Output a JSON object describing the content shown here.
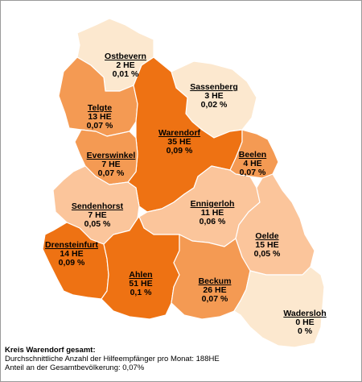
{
  "colors": {
    "very_light": "#fce8cf",
    "light": "#fbc59b",
    "medium": "#f49a53",
    "dark": "#ee7213"
  },
  "regions": [
    {
      "id": "ostbevern",
      "name": "Ostbevern",
      "he": "2 HE",
      "pct": "0,01 %",
      "shade": "very_light"
    },
    {
      "id": "sassenberg",
      "name": "Sassenberg",
      "he": "3 HE",
      "pct": "0,02 %",
      "shade": "very_light"
    },
    {
      "id": "telgte",
      "name": "Telgte",
      "he": "13 HE",
      "pct": "0,07 %",
      "shade": "medium"
    },
    {
      "id": "warendorf",
      "name": "Warendorf",
      "he": "35 HE",
      "pct": "0,09 %",
      "shade": "dark"
    },
    {
      "id": "everswinkel",
      "name": "Everswinkel",
      "he": "7 HE",
      "pct": "0,07 %",
      "shade": "medium"
    },
    {
      "id": "beelen",
      "name": "Beelen",
      "he": "4 HE",
      "pct": "0,07 %",
      "shade": "medium"
    },
    {
      "id": "sendenhorst",
      "name": "Sendenhorst",
      "he": "7 HE",
      "pct": "0,05 %",
      "shade": "light"
    },
    {
      "id": "ennigerloh",
      "name": "Ennigerloh",
      "he": "11 HE",
      "pct": "0,06 %",
      "shade": "light"
    },
    {
      "id": "oelde",
      "name": "Oelde",
      "he": "15 HE",
      "pct": "0,05 %",
      "shade": "light"
    },
    {
      "id": "drensteinfurt",
      "name": "Drensteinfurt",
      "he": "14 HE",
      "pct": "0,09 %",
      "shade": "dark"
    },
    {
      "id": "ahlen",
      "name": "Ahlen",
      "he": "51 HE",
      "pct": "0,1 %",
      "shade": "dark"
    },
    {
      "id": "beckum",
      "name": "Beckum",
      "he": "26 HE",
      "pct": "0,07 %",
      "shade": "medium"
    },
    {
      "id": "wadersloh",
      "name": "Wadersloh",
      "he": "0 HE",
      "pct": "0 %",
      "shade": "very_light"
    }
  ],
  "summary": {
    "title": "Kreis Warendorf gesamt:",
    "line1": "Durchschnittliche Anzahl der Hilfeempfänger pro Monat: 188HE",
    "line2": "Anteil an der Gesamtbevölkerung: 0,07%"
  }
}
